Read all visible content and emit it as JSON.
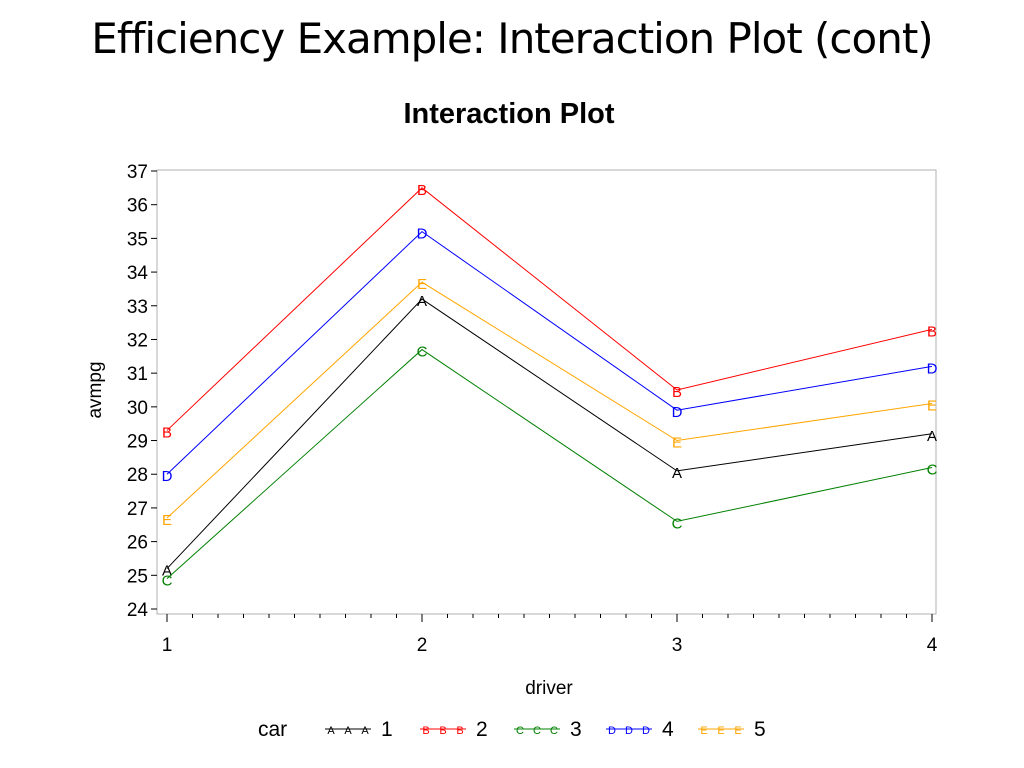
{
  "slide": {
    "title": "Efficiency Example: Interaction Plot (cont)"
  },
  "chart_data": {
    "type": "line",
    "title": "Interaction Plot",
    "xlabel": "driver",
    "ylabel": "avmpg",
    "x": [
      1,
      2,
      3,
      4
    ],
    "xlim": [
      1,
      4
    ],
    "ylim": [
      24,
      37
    ],
    "yticks": [
      24,
      25,
      26,
      27,
      28,
      29,
      30,
      31,
      32,
      33,
      34,
      35,
      36,
      37
    ],
    "xticks": [
      1,
      2,
      3,
      4
    ],
    "grid": false,
    "legend": {
      "title": "car",
      "placement": "bottom"
    },
    "series": [
      {
        "name": "1",
        "marker": "A",
        "color": "#000000",
        "values": [
          25.2,
          33.2,
          28.1,
          29.2
        ]
      },
      {
        "name": "2",
        "marker": "B",
        "color": "#ff0000",
        "values": [
          29.3,
          36.5,
          30.5,
          32.3
        ]
      },
      {
        "name": "3",
        "marker": "C",
        "color": "#008000",
        "values": [
          24.9,
          31.7,
          26.6,
          28.2
        ]
      },
      {
        "name": "4",
        "marker": "D",
        "color": "#0000ff",
        "values": [
          28.0,
          35.2,
          29.9,
          31.2
        ]
      },
      {
        "name": "5",
        "marker": "E",
        "color": "#ffa500",
        "values": [
          26.7,
          33.7,
          29.0,
          30.1
        ]
      }
    ]
  }
}
